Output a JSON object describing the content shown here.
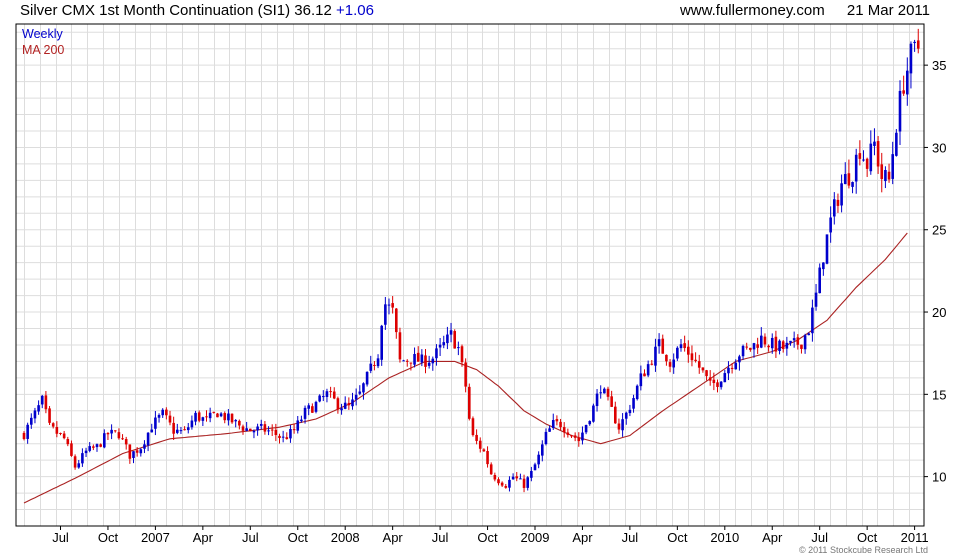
{
  "header": {
    "title": "Silver CMX 1st Month Continuation (SI1) 36.12",
    "change": "+1.06",
    "site": "www.fullermoney.com",
    "date": "21 Mar 2011"
  },
  "legend": {
    "series1": "Weekly",
    "series2": "MA 200"
  },
  "credit": "© 2011 Stockcube Research Ltd",
  "colors": {
    "up": "#0000cc",
    "down": "#dd0000",
    "ma": "#aa2222",
    "grid": "#dddddd",
    "frame": "#000000"
  },
  "chart_data": {
    "type": "candlestick",
    "x_tick_labels": [
      "Jul",
      "Oct",
      "2007",
      "Apr",
      "Jul",
      "Oct",
      "2008",
      "Apr",
      "Jul",
      "Oct",
      "2009",
      "Apr",
      "Jul",
      "Oct",
      "2010",
      "Apr",
      "Jul",
      "Oct",
      "2011"
    ],
    "y_ticks": [
      10,
      15,
      20,
      25,
      30,
      35
    ],
    "ylim": [
      7,
      37.5
    ],
    "grid": true,
    "price_anchors": [
      [
        0,
        12.6
      ],
      [
        3,
        13.8
      ],
      [
        5,
        14.6
      ],
      [
        7,
        13.0
      ],
      [
        11,
        12.3
      ],
      [
        14,
        10.6
      ],
      [
        17,
        11.5
      ],
      [
        20,
        11.8
      ],
      [
        23,
        12.6
      ],
      [
        26,
        12.6
      ],
      [
        29,
        11.3
      ],
      [
        32,
        11.8
      ],
      [
        35,
        13.1
      ],
      [
        38,
        13.8
      ],
      [
        41,
        12.8
      ],
      [
        44,
        12.7
      ],
      [
        47,
        13.7
      ],
      [
        50,
        13.4
      ],
      [
        53,
        13.9
      ],
      [
        56,
        13.5
      ],
      [
        59,
        13.1
      ],
      [
        62,
        12.8
      ],
      [
        65,
        12.9
      ],
      [
        68,
        12.7
      ],
      [
        71,
        12.3
      ],
      [
        74,
        12.8
      ],
      [
        77,
        13.9
      ],
      [
        80,
        14.4
      ],
      [
        83,
        15.0
      ],
      [
        86,
        14.4
      ],
      [
        89,
        14.2
      ],
      [
        92,
        15.0
      ],
      [
        95,
        16.5
      ],
      [
        97,
        17.5
      ],
      [
        98,
        19.6
      ],
      [
        99,
        20.5
      ],
      [
        101,
        20.0
      ],
      [
        103,
        17.0
      ],
      [
        106,
        17.2
      ],
      [
        109,
        17.0
      ],
      [
        112,
        17.2
      ],
      [
        115,
        18.0
      ],
      [
        117,
        18.6
      ],
      [
        119,
        17.8
      ],
      [
        121,
        15.5
      ],
      [
        122,
        13.5
      ],
      [
        123,
        12.4
      ],
      [
        126,
        11.5
      ],
      [
        128,
        10.2
      ],
      [
        130,
        9.8
      ],
      [
        132,
        9.5
      ],
      [
        134,
        10.0
      ],
      [
        137,
        9.5
      ],
      [
        139,
        10.2
      ],
      [
        141,
        11.2
      ],
      [
        143,
        12.5
      ],
      [
        145,
        13.2
      ],
      [
        147,
        13.2
      ],
      [
        149,
        12.8
      ],
      [
        152,
        12.2
      ],
      [
        154,
        13.2
      ],
      [
        156,
        14.2
      ],
      [
        158,
        15.5
      ],
      [
        160,
        14.5
      ],
      [
        163,
        13.0
      ],
      [
        165,
        13.8
      ],
      [
        167,
        14.8
      ],
      [
        169,
        16.0
      ],
      [
        171,
        16.8
      ],
      [
        174,
        18.0
      ],
      [
        177,
        17.0
      ],
      [
        180,
        18.0
      ],
      [
        183,
        17.3
      ],
      [
        186,
        16.3
      ],
      [
        188,
        15.5
      ],
      [
        190,
        15.8
      ],
      [
        193,
        16.7
      ],
      [
        196,
        17.5
      ],
      [
        199,
        17.8
      ],
      [
        202,
        18.4
      ],
      [
        205,
        18.0
      ],
      [
        208,
        17.8
      ],
      [
        211,
        18.0
      ],
      [
        213,
        18.2
      ],
      [
        215,
        19.0
      ],
      [
        217,
        21.0
      ],
      [
        219,
        23.5
      ],
      [
        221,
        25.5
      ],
      [
        224,
        27.8
      ],
      [
        227,
        28.6
      ],
      [
        229,
        30.0
      ],
      [
        231,
        29.0
      ],
      [
        233,
        30.2
      ],
      [
        235,
        28.2
      ],
      [
        237,
        28.0
      ],
      [
        239,
        31.5
      ],
      [
        241,
        34.0
      ],
      [
        243,
        35.5
      ],
      [
        245,
        36.1
      ]
    ],
    "ma200_anchors": [
      [
        0,
        8.4
      ],
      [
        14,
        9.9
      ],
      [
        27,
        11.4
      ],
      [
        40,
        12.3
      ],
      [
        55,
        12.6
      ],
      [
        70,
        13.0
      ],
      [
        80,
        13.5
      ],
      [
        90,
        14.5
      ],
      [
        100,
        16.0
      ],
      [
        110,
        17.0
      ],
      [
        118,
        17.0
      ],
      [
        124,
        16.5
      ],
      [
        130,
        15.5
      ],
      [
        137,
        14.0
      ],
      [
        143,
        13.2
      ],
      [
        150,
        12.5
      ],
      [
        158,
        12.0
      ],
      [
        166,
        12.5
      ],
      [
        175,
        14.0
      ],
      [
        185,
        15.5
      ],
      [
        195,
        17.0
      ],
      [
        205,
        17.6
      ],
      [
        212,
        18.3
      ],
      [
        220,
        19.5
      ],
      [
        228,
        21.5
      ],
      [
        236,
        23.2
      ],
      [
        242,
        24.8
      ]
    ],
    "bars": 246
  }
}
